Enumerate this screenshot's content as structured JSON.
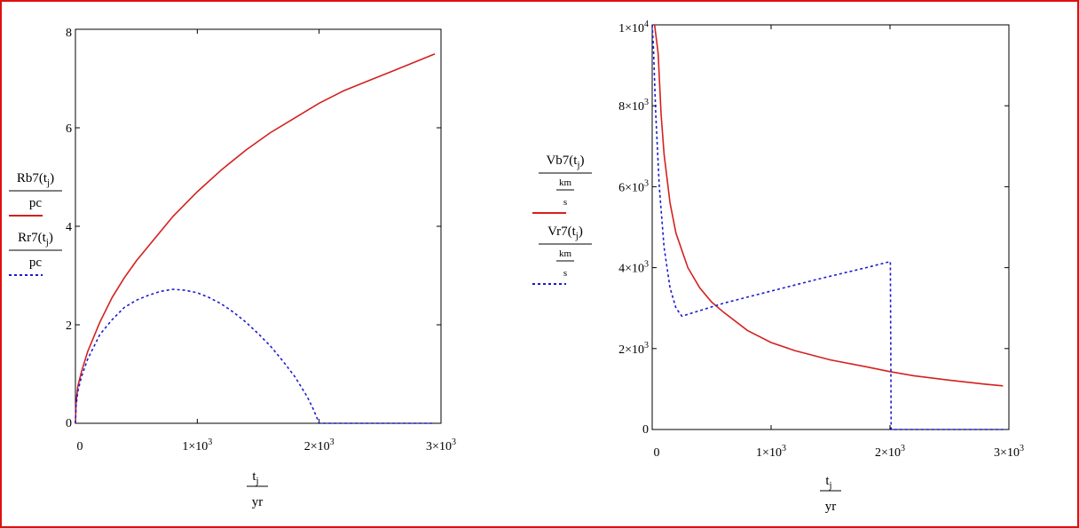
{
  "chart_data": [
    {
      "type": "line",
      "xlim": [
        0,
        3000
      ],
      "ylim": [
        0,
        8
      ],
      "x_ticks": [
        {
          "value": 0,
          "mantissa": "0",
          "exponent": ""
        },
        {
          "value": 1000,
          "mantissa": "1×10",
          "exponent": "3"
        },
        {
          "value": 2000,
          "mantissa": "2×10",
          "exponent": "3"
        },
        {
          "value": 3000,
          "mantissa": "3×10",
          "exponent": "3"
        }
      ],
      "y_ticks": [
        {
          "value": 0,
          "mantissa": "0",
          "exponent": ""
        },
        {
          "value": 2,
          "mantissa": "2",
          "exponent": ""
        },
        {
          "value": 4,
          "mantissa": "4",
          "exponent": ""
        },
        {
          "value": 6,
          "mantissa": "6",
          "exponent": ""
        },
        {
          "value": 8,
          "mantissa": "8",
          "exponent": ""
        }
      ],
      "xlabel": {
        "numerator": "t",
        "sub": "j",
        "denominator": "yr"
      },
      "legend": [
        {
          "numerator": "Rb7",
          "arg": "t",
          "sub": "j",
          "denominator": "pc",
          "color": "#d42020",
          "dash": "solid"
        },
        {
          "numerator": "Rr7",
          "arg": "t",
          "sub": "j",
          "denominator": "pc",
          "color": "#1a1ad0",
          "dash": "dotted"
        }
      ],
      "series": [
        {
          "color": "#d42020",
          "dash": "solid",
          "x": [
            0,
            5,
            20,
            50,
            100,
            200,
            300,
            400,
            500,
            600,
            800,
            1000,
            1200,
            1400,
            1600,
            1800,
            2000,
            2200,
            2400,
            2600,
            2800,
            2950
          ],
          "y": [
            0,
            0.4,
            0.75,
            1.05,
            1.45,
            2.05,
            2.55,
            2.95,
            3.3,
            3.6,
            4.2,
            4.7,
            5.15,
            5.55,
            5.9,
            6.2,
            6.5,
            6.75,
            6.95,
            7.15,
            7.35,
            7.5
          ]
        },
        {
          "color": "#1a1ad0",
          "dash": "dotted",
          "x": [
            0,
            5,
            20,
            50,
            100,
            200,
            300,
            400,
            500,
            600,
            700,
            800,
            900,
            1000,
            1100,
            1200,
            1300,
            1400,
            1500,
            1600,
            1700,
            1800,
            1900,
            1950,
            2000,
            2200,
            2400,
            2600,
            2800,
            2950
          ],
          "y": [
            0,
            0.35,
            0.65,
            0.95,
            1.3,
            1.8,
            2.1,
            2.35,
            2.5,
            2.6,
            2.68,
            2.72,
            2.7,
            2.65,
            2.55,
            2.42,
            2.25,
            2.05,
            1.82,
            1.57,
            1.27,
            0.95,
            0.55,
            0.3,
            0,
            0,
            0,
            0,
            0,
            0
          ]
        }
      ]
    },
    {
      "type": "line",
      "xlim": [
        0,
        3000
      ],
      "ylim": [
        0,
        10000
      ],
      "x_ticks": [
        {
          "value": 0,
          "mantissa": "0",
          "exponent": ""
        },
        {
          "value": 1000,
          "mantissa": "1×10",
          "exponent": "3"
        },
        {
          "value": 2000,
          "mantissa": "2×10",
          "exponent": "3"
        },
        {
          "value": 3000,
          "mantissa": "3×10",
          "exponent": "3"
        }
      ],
      "y_ticks": [
        {
          "value": 0,
          "mantissa": "0",
          "exponent": ""
        },
        {
          "value": 2000,
          "mantissa": "2×10",
          "exponent": "3"
        },
        {
          "value": 4000,
          "mantissa": "4×10",
          "exponent": "3"
        },
        {
          "value": 6000,
          "mantissa": "6×10",
          "exponent": "3"
        },
        {
          "value": 8000,
          "mantissa": "8×10",
          "exponent": "3"
        },
        {
          "value": 10000,
          "mantissa": "1×10",
          "exponent": "4"
        }
      ],
      "xlabel": {
        "numerator": "t",
        "sub": "j",
        "denominator": "yr"
      },
      "legend": [
        {
          "numerator": "Vb7",
          "arg": "t",
          "sub": "j",
          "den_top": "km",
          "den_bottom": "s",
          "color": "#d42020",
          "dash": "solid"
        },
        {
          "numerator": "Vr7",
          "arg": "t",
          "sub": "j",
          "den_top": "km",
          "den_bottom": "s",
          "color": "#1a1ad0",
          "dash": "dotted"
        }
      ],
      "series": [
        {
          "color": "#d42020",
          "dash": "solid",
          "x": [
            20,
            50,
            75,
            100,
            150,
            200,
            300,
            400,
            500,
            600,
            800,
            1000,
            1200,
            1500,
            1800,
            2000,
            2200,
            2500,
            2800,
            2950
          ],
          "y": [
            10000,
            9300,
            7800,
            6800,
            5600,
            4850,
            4000,
            3500,
            3150,
            2900,
            2450,
            2150,
            1950,
            1720,
            1550,
            1430,
            1330,
            1220,
            1120,
            1080
          ]
        },
        {
          "color": "#1a1ad0",
          "dash": "dotted",
          "x": [
            0,
            10,
            30,
            60,
            100,
            150,
            200,
            250,
            600,
            1000,
            1400,
            1800,
            2000,
            2003,
            2010,
            2050,
            2200,
            2400,
            2600,
            2800,
            2950
          ],
          "y": [
            10000,
            9500,
            7800,
            6000,
            4500,
            3500,
            3000,
            2800,
            3120,
            3420,
            3720,
            4000,
            4150,
            4150,
            0,
            0,
            0,
            0,
            0,
            0,
            0
          ]
        }
      ]
    }
  ]
}
